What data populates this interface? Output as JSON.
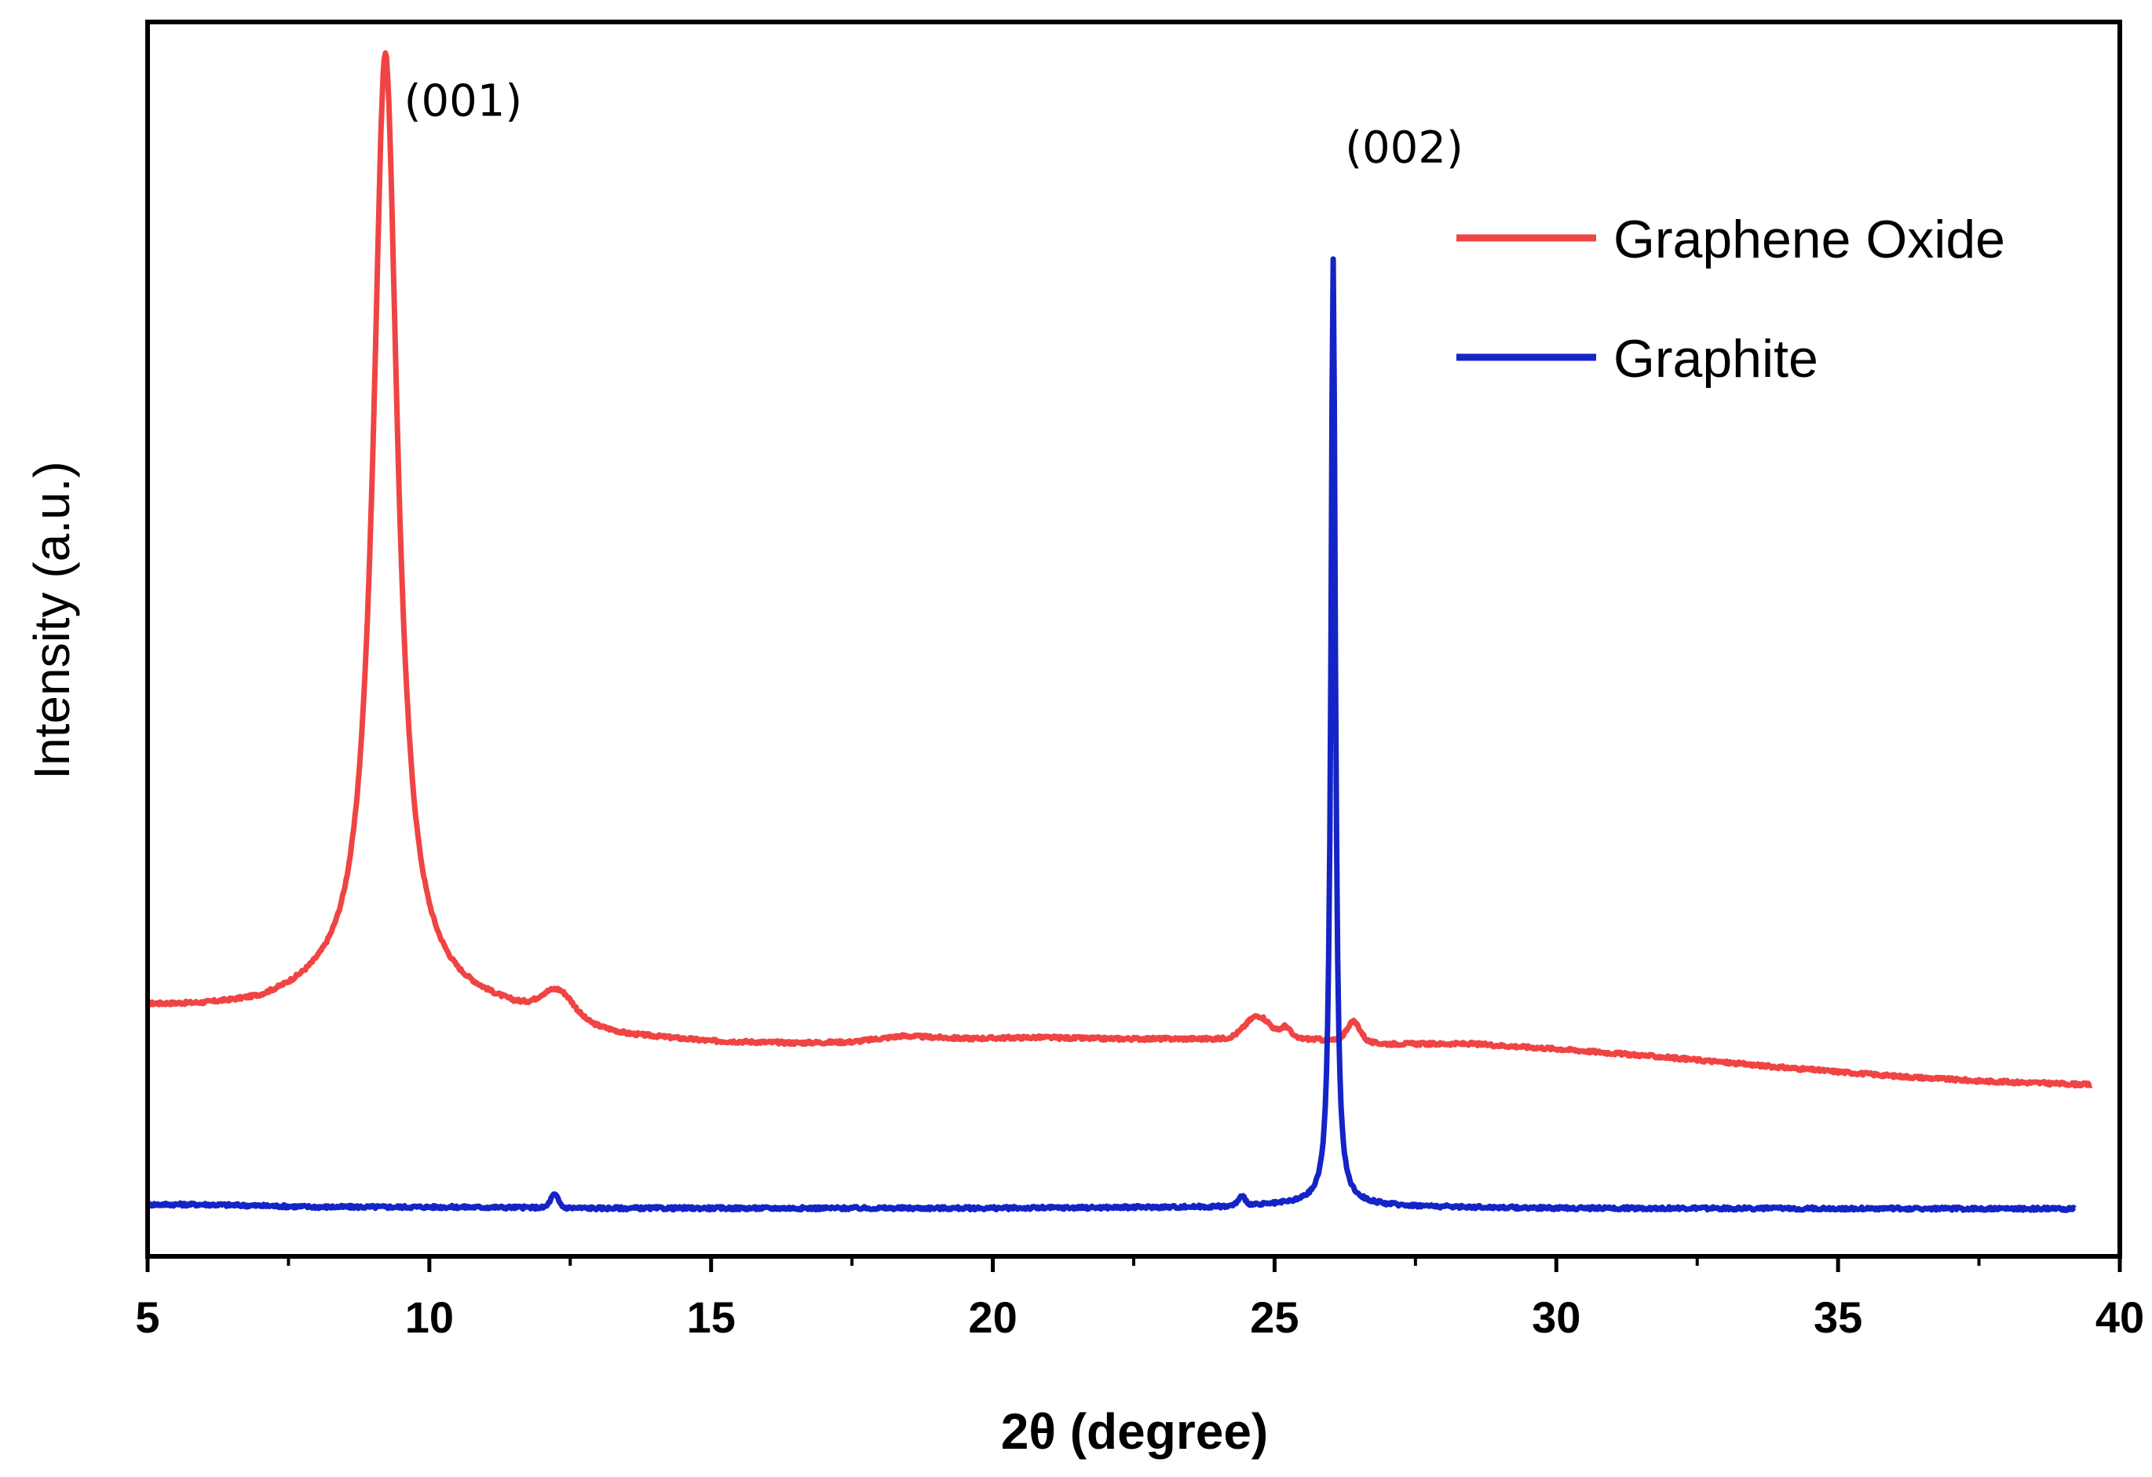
{
  "chart_data": {
    "type": "line",
    "title": "",
    "xlabel": "2θ (degree)",
    "ylabel": "Intensity (a.u.)",
    "xlim": [
      5,
      40
    ],
    "ylim": [
      0,
      100
    ],
    "x_ticks": [
      5,
      10,
      15,
      20,
      25,
      30,
      35,
      40
    ],
    "x_tick_labels": [
      "5",
      "10",
      "15",
      "20",
      "25",
      "30",
      "35",
      "40"
    ],
    "x_minor_step": 2.5,
    "y_ticks_shown": false,
    "grid": false,
    "legend_position": "top-right",
    "series": [
      {
        "name": "Graphene Oxide",
        "color": "#f04444",
        "baseline": [
          [
            5.0,
            20.2
          ],
          [
            6.0,
            20.1
          ],
          [
            7.0,
            20.2
          ],
          [
            8.0,
            21.0
          ],
          [
            9.5,
            21.6
          ],
          [
            10.5,
            20.5
          ],
          [
            11.5,
            19.8
          ],
          [
            12.0,
            19.6
          ],
          [
            12.7,
            18.6
          ],
          [
            13.5,
            17.8
          ],
          [
            15.0,
            17.3
          ],
          [
            16.5,
            17.2
          ],
          [
            17.5,
            17.3
          ],
          [
            18.4,
            17.8
          ],
          [
            19.5,
            17.6
          ],
          [
            20.8,
            17.7
          ],
          [
            22.0,
            17.6
          ],
          [
            23.0,
            17.6
          ],
          [
            24.2,
            17.6
          ],
          [
            25.2,
            17.7
          ],
          [
            26.0,
            17.5
          ],
          [
            27.0,
            17.2
          ],
          [
            28.5,
            17.2
          ],
          [
            30.0,
            16.8
          ],
          [
            32.0,
            16.1
          ],
          [
            34.0,
            15.3
          ],
          [
            36.0,
            14.6
          ],
          [
            37.5,
            14.2
          ],
          [
            39.5,
            13.9
          ]
        ],
        "peaks": [
          {
            "center": 9.22,
            "height": 76.0,
            "width": 0.52,
            "shape": "lorentzian"
          },
          {
            "center": 12.3,
            "height": 1.9,
            "width": 0.26,
            "shape": "gaussian"
          },
          {
            "center": 24.7,
            "height": 1.8,
            "width": 0.22,
            "shape": "gaussian"
          },
          {
            "center": 25.2,
            "height": 0.8,
            "width": 0.08,
            "shape": "gaussian"
          },
          {
            "center": 26.4,
            "height": 1.6,
            "width": 0.12,
            "shape": "gaussian"
          }
        ],
        "x_range": [
          5.0,
          39.5
        ]
      },
      {
        "name": "Graphite",
        "color": "#1424c6",
        "baseline": [
          [
            5.0,
            4.2
          ],
          [
            6.0,
            4.2
          ],
          [
            8.0,
            4.0
          ],
          [
            10.0,
            4.0
          ],
          [
            12.0,
            3.95
          ],
          [
            13.0,
            3.9
          ],
          [
            20.0,
            3.9
          ],
          [
            24.0,
            4.0
          ],
          [
            25.0,
            4.15
          ],
          [
            26.0,
            4.35
          ],
          [
            27.0,
            4.1
          ],
          [
            28.0,
            4.0
          ],
          [
            30.0,
            3.9
          ],
          [
            39.2,
            3.85
          ]
        ],
        "peaks": [
          {
            "center": 26.04,
            "height": 76.4,
            "width": 0.095,
            "shape": "lorentzian"
          },
          {
            "center": 12.22,
            "height": 1.05,
            "width": 0.07,
            "shape": "gaussian"
          },
          {
            "center": 24.42,
            "height": 0.7,
            "width": 0.07,
            "shape": "gaussian"
          }
        ],
        "x_range": [
          5.0,
          39.2
        ]
      }
    ],
    "annotations": [
      {
        "text": "(001)",
        "x": 10.6,
        "y": 92.4,
        "anchor": "middle"
      },
      {
        "text": "(002)",
        "x": 27.3,
        "y": 88.6,
        "anchor": "middle"
      }
    ]
  }
}
